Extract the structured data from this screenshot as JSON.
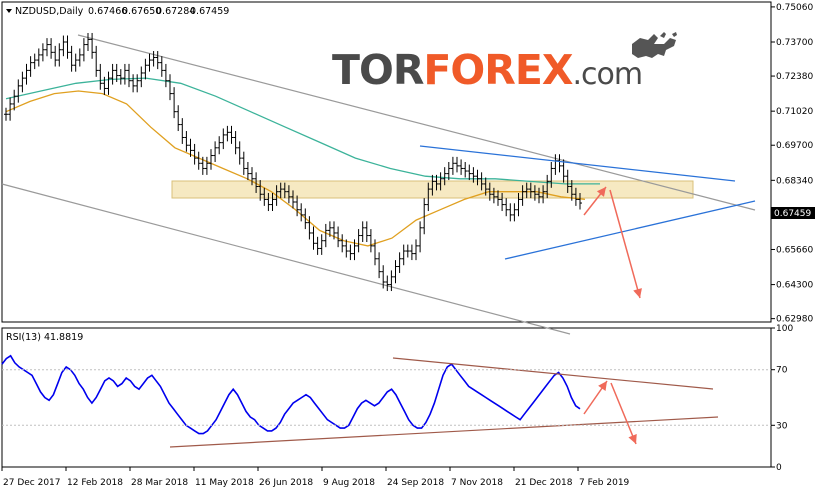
{
  "header": {
    "title": "NZDUSD,Daily",
    "open": "0.67466",
    "high": "0.67650",
    "low": "0.67284",
    "close": "0.67459"
  },
  "logo": {
    "part1": "TOR",
    "part2": "FOREX",
    "part3": ".com"
  },
  "rsi": {
    "label": "RSI(13) 41.8819",
    "last": 41.88
  },
  "colors": {
    "bull_bear_candles": "#000000",
    "sma_slow": "#3cb39a",
    "sma_fast": "#e0a020",
    "channel_lines": "#9a9a9a",
    "triangle_lines": "#2a72d8",
    "forecast_arrows": "#f06a5a",
    "resistance_zone": "#f3e3b0",
    "rsi_line": "#0000ee",
    "rsi_trendlines": "#a05a4a",
    "price_label_bg": "#000000"
  },
  "chart_data": [
    {
      "type": "candlestick",
      "title": "NZDUSD,Daily",
      "y_ticks": [
        "0.75060",
        "0.73700",
        "0.72380",
        "0.71020",
        "0.69700",
        "0.68340",
        "0.66980",
        "0.65660",
        "0.64300",
        "0.62980"
      ],
      "ylim": [
        0.6285,
        0.7525
      ],
      "x_tick_labels": [
        "27 Dec 2017",
        "12 Feb 2018",
        "28 Mar 2018",
        "11 May 2018",
        "26 Jun 2018",
        "9 Aug 2018",
        "24 Sep 2018",
        "7 Nov 2018",
        "21 Dec 2018",
        "7 Feb 2019"
      ],
      "current_price": "0.67459",
      "closes_approx": [
        0.709,
        0.713,
        0.716,
        0.72,
        0.723,
        0.726,
        0.729,
        0.73,
        0.732,
        0.734,
        0.736,
        0.733,
        0.73,
        0.734,
        0.737,
        0.733,
        0.728,
        0.73,
        0.732,
        0.736,
        0.738,
        0.733,
        0.726,
        0.721,
        0.719,
        0.723,
        0.726,
        0.724,
        0.723,
        0.726,
        0.722,
        0.72,
        0.722,
        0.725,
        0.728,
        0.73,
        0.731,
        0.729,
        0.726,
        0.722,
        0.717,
        0.71,
        0.705,
        0.7,
        0.697,
        0.695,
        0.692,
        0.69,
        0.688,
        0.69,
        0.693,
        0.696,
        0.698,
        0.701,
        0.702,
        0.7,
        0.696,
        0.692,
        0.688,
        0.686,
        0.684,
        0.681,
        0.678,
        0.676,
        0.674,
        0.676,
        0.679,
        0.68,
        0.679,
        0.677,
        0.675,
        0.672,
        0.67,
        0.667,
        0.663,
        0.659,
        0.657,
        0.66,
        0.664,
        0.665,
        0.663,
        0.66,
        0.658,
        0.656,
        0.655,
        0.658,
        0.662,
        0.665,
        0.662,
        0.658,
        0.653,
        0.648,
        0.644,
        0.643,
        0.646,
        0.65,
        0.653,
        0.656,
        0.656,
        0.655,
        0.658,
        0.665,
        0.674,
        0.68,
        0.683,
        0.682,
        0.684,
        0.686,
        0.688,
        0.69,
        0.689,
        0.688,
        0.687,
        0.686,
        0.685,
        0.684,
        0.682,
        0.68,
        0.678,
        0.677,
        0.676,
        0.674,
        0.672,
        0.67,
        0.672,
        0.676,
        0.679,
        0.68,
        0.679,
        0.678,
        0.677,
        0.679,
        0.683,
        0.688,
        0.691,
        0.689,
        0.685,
        0.681,
        0.678,
        0.676,
        0.6746
      ],
      "sma_fast_approx": [
        0.71,
        0.714,
        0.717,
        0.718,
        0.717,
        0.713,
        0.704,
        0.696,
        0.692,
        0.688,
        0.684,
        0.679,
        0.672,
        0.664,
        0.66,
        0.658,
        0.661,
        0.668,
        0.672,
        0.676,
        0.679,
        0.679,
        0.679,
        0.677,
        0.676
      ],
      "sma_slow_approx": [
        0.715,
        0.718,
        0.721,
        0.7225,
        0.723,
        0.721,
        0.716,
        0.71,
        0.704,
        0.698,
        0.692,
        0.688,
        0.685,
        0.684,
        0.684,
        0.683,
        0.682,
        0.682
      ]
    },
    {
      "type": "line",
      "title": "RSI(13) 41.8819",
      "y_ticks": [
        "100",
        "70",
        "30",
        "0"
      ],
      "ylim": [
        0,
        100
      ],
      "x_tick_labels": [
        "27 Dec 2017",
        "12 Feb 2018",
        "28 Mar 2018",
        "11 May 2018",
        "26 Jun 2018",
        "9 Aug 2018",
        "24 Sep 2018",
        "7 Nov 2018",
        "21 Dec 2018",
        "7 Feb 2019"
      ],
      "values_approx": [
        74,
        78,
        80,
        75,
        72,
        70,
        68,
        66,
        60,
        54,
        50,
        48,
        52,
        60,
        68,
        72,
        70,
        66,
        60,
        56,
        50,
        46,
        50,
        56,
        62,
        64,
        62,
        58,
        60,
        64,
        62,
        58,
        56,
        60,
        64,
        66,
        62,
        58,
        52,
        46,
        42,
        38,
        34,
        30,
        28,
        26,
        24,
        24,
        26,
        30,
        34,
        40,
        46,
        52,
        56,
        52,
        46,
        40,
        36,
        34,
        30,
        28,
        26,
        26,
        28,
        32,
        38,
        42,
        46,
        48,
        50,
        52,
        50,
        46,
        42,
        38,
        34,
        32,
        30,
        28,
        28,
        30,
        36,
        42,
        46,
        48,
        46,
        44,
        46,
        50,
        54,
        56,
        52,
        46,
        40,
        34,
        30,
        28,
        28,
        32,
        38,
        46,
        56,
        66,
        72,
        74,
        70,
        66,
        62,
        58,
        56,
        54,
        52,
        50,
        48,
        46,
        44,
        42,
        40,
        38,
        36,
        34,
        38,
        42,
        46,
        50,
        54,
        58,
        62,
        66,
        68,
        64,
        58,
        50,
        44,
        41.88
      ]
    }
  ]
}
